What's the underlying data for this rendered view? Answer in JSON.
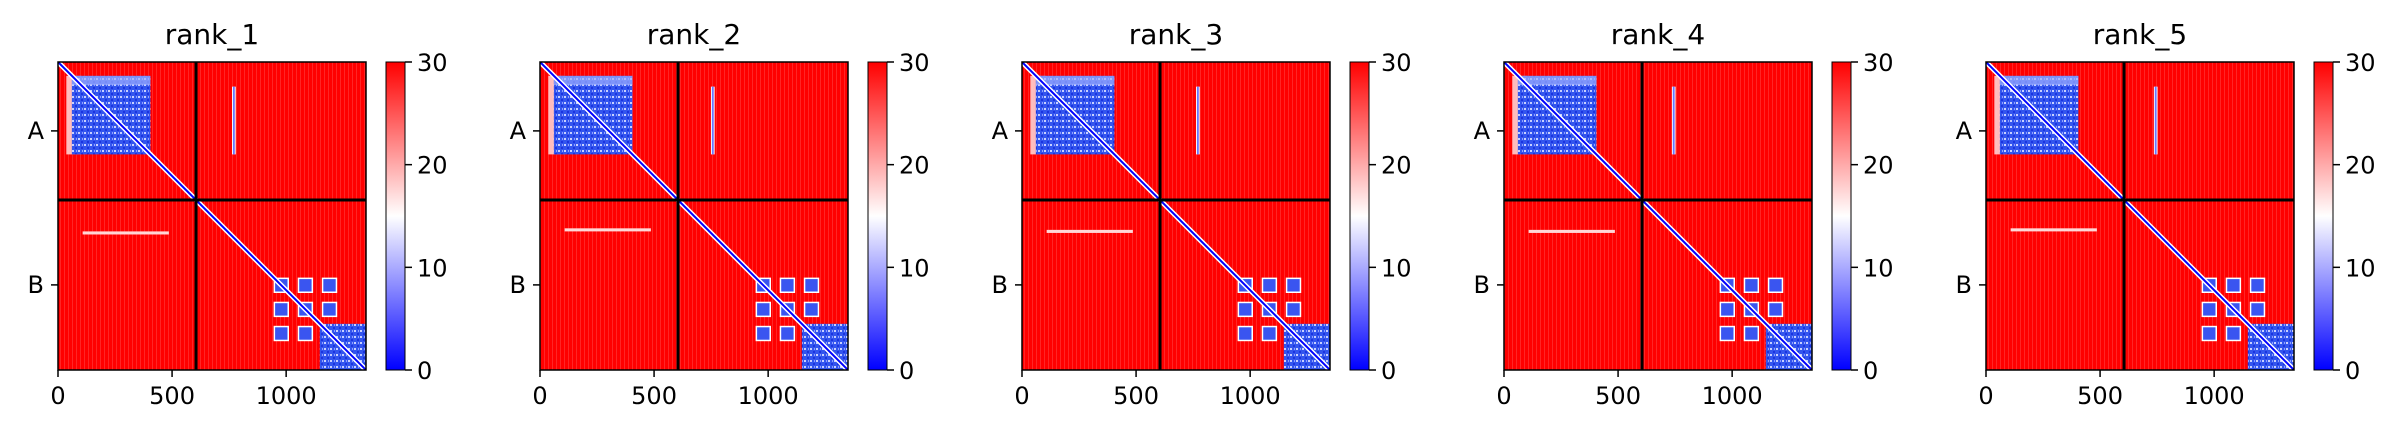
{
  "figure": {
    "colorbar_ticks": [
      0,
      10,
      20,
      30
    ],
    "colormap": {
      "low": "#0000ff",
      "mid": "#ffffff",
      "high": "#ff0000",
      "range": [
        0,
        30
      ]
    },
    "x_ticks": [
      0,
      500,
      1000
    ],
    "y_tick_labels": [
      "A",
      "B"
    ]
  },
  "chart_data": [
    {
      "type": "heatmap",
      "title": "rank_1",
      "x_range": [
        0,
        1350
      ],
      "y_range": [
        0,
        1350
      ],
      "chain_boundary": 605,
      "y_ticks": [
        {
          "label": "A",
          "value": 302
        },
        {
          "label": "B",
          "value": 977
        }
      ],
      "colorbar": {
        "min": 0,
        "max": 30
      }
    },
    {
      "type": "heatmap",
      "title": "rank_2",
      "x_range": [
        0,
        1350
      ],
      "y_range": [
        0,
        1350
      ],
      "chain_boundary": 605,
      "y_ticks": [
        {
          "label": "A",
          "value": 302
        },
        {
          "label": "B",
          "value": 977
        }
      ],
      "colorbar": {
        "min": 0,
        "max": 30
      }
    },
    {
      "type": "heatmap",
      "title": "rank_3",
      "x_range": [
        0,
        1350
      ],
      "y_range": [
        0,
        1350
      ],
      "chain_boundary": 605,
      "y_ticks": [
        {
          "label": "A",
          "value": 302
        },
        {
          "label": "B",
          "value": 977
        }
      ],
      "colorbar": {
        "min": 0,
        "max": 30
      }
    },
    {
      "type": "heatmap",
      "title": "rank_4",
      "x_range": [
        0,
        1350
      ],
      "y_range": [
        0,
        1350
      ],
      "chain_boundary": 605,
      "y_ticks": [
        {
          "label": "A",
          "value": 302
        },
        {
          "label": "B",
          "value": 977
        }
      ],
      "colorbar": {
        "min": 0,
        "max": 30
      }
    },
    {
      "type": "heatmap",
      "title": "rank_5",
      "x_range": [
        0,
        1350
      ],
      "y_range": [
        0,
        1350
      ],
      "chain_boundary": 605,
      "y_ticks": [
        {
          "label": "A",
          "value": 302
        },
        {
          "label": "B",
          "value": 977
        }
      ],
      "colorbar": {
        "min": 0,
        "max": 30
      }
    }
  ]
}
